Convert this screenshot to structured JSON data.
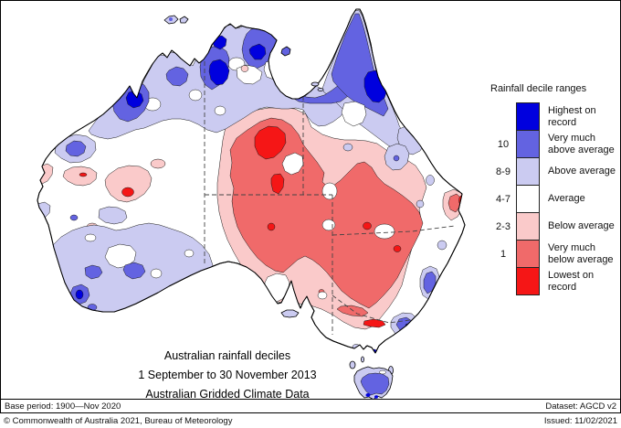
{
  "legend": {
    "title": "Rainfall decile ranges",
    "entries": [
      {
        "decile": "",
        "label": "Highest on record",
        "key": "highest"
      },
      {
        "decile": "10",
        "label": "Very much above average",
        "key": "very_much_above"
      },
      {
        "decile": "8-9",
        "label": "Above average",
        "key": "above"
      },
      {
        "decile": "4-7",
        "label": "Average",
        "key": "average"
      },
      {
        "decile": "2-3",
        "label": "Below average",
        "key": "below"
      },
      {
        "decile": "1",
        "label": "Very much below average",
        "key": "very_much_below"
      },
      {
        "decile": "",
        "label": "Lowest on record",
        "key": "lowest"
      }
    ]
  },
  "palette": {
    "highest": "#0000DE",
    "very_much_above": "#6363E1",
    "above": "#CBCBF1",
    "average": "#FFFFFF",
    "below": "#FACACA",
    "very_much_below": "#F06A6A",
    "lowest": "#F51616",
    "land": "#FFFFFF",
    "coastline": "#000000",
    "state_border": "#444444"
  },
  "titles": {
    "line1": "Australian rainfall deciles",
    "line2": "1 September to 30 November 2013",
    "line3": "Australian Gridded Climate Data"
  },
  "footer": {
    "base_period": "Base period: 1900—Nov 2020",
    "dataset": "Dataset: AGCD v2",
    "copyright": "© Commonwealth of Australia 2021, Bureau of Meteorology",
    "issued": "Issued: 11/02/2021"
  }
}
